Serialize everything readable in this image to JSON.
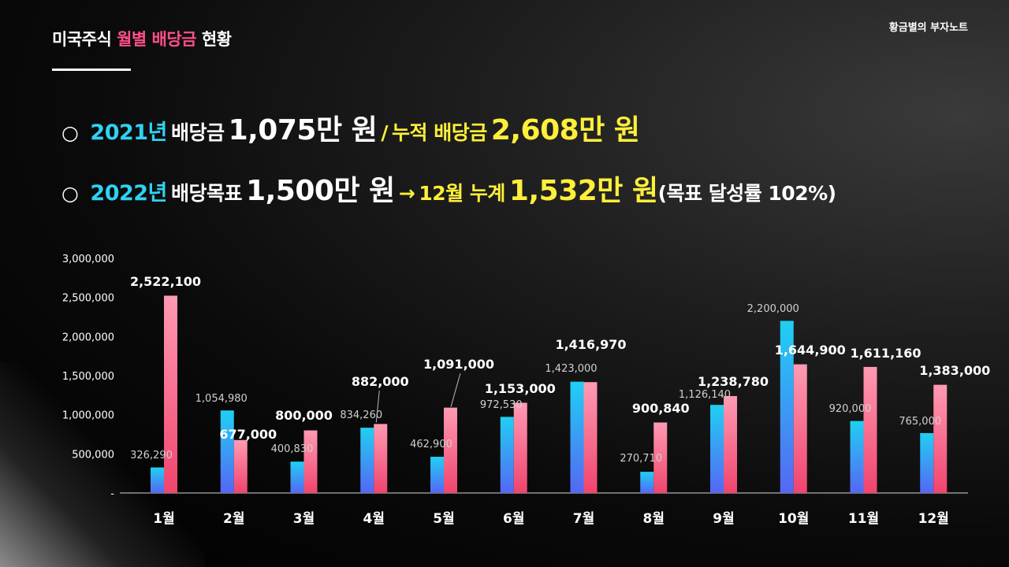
{
  "title": {
    "prefix": "미국주식",
    "accent": "월별 배당금",
    "suffix": "현황"
  },
  "brand": "황금별의 부자노트",
  "summary": {
    "line1": {
      "bullet": "○",
      "year": "2021년",
      "label": "배당금",
      "amount": "1,075만 원",
      "sep": "/",
      "cum_label": "누적 배당금",
      "cum_amount": "2,608만 원"
    },
    "line2": {
      "bullet": "○",
      "year": "2022년",
      "label": "배당목표",
      "amount": "1,500만 원",
      "arrow": "→",
      "dec_label": "12월 누계",
      "dec_amount": "1,532만 원",
      "note": "(목표 달성률 102%)"
    }
  },
  "colors": {
    "accent_pink": "#ff4f8b",
    "cyan": "#2fd2f2",
    "yellow": "#ffef3a"
  },
  "chart_data": {
    "type": "bar",
    "categories": [
      "1월",
      "2월",
      "3월",
      "4월",
      "5월",
      "6월",
      "7월",
      "8월",
      "9월",
      "10월",
      "11월",
      "12월"
    ],
    "series": [
      {
        "name": "2021",
        "color": "#25c4ef",
        "values": [
          326290,
          1054980,
          400830,
          834260,
          462900,
          972530,
          1423000,
          270710,
          1126140,
          2200000,
          920000,
          765000
        ],
        "labels": [
          "326,290",
          "1,054,980",
          "400,830",
          "834,260",
          "462,900",
          "972,530",
          "1,423,000",
          "270,710",
          "1,126,140",
          "2,200,000",
          "920,000",
          "765,000"
        ]
      },
      {
        "name": "2022",
        "color": "#ff6f96",
        "values": [
          2522100,
          677000,
          800000,
          882000,
          1091000,
          1153000,
          1416970,
          900840,
          1238780,
          1644900,
          1611160,
          1383000
        ],
        "labels": [
          "2,522,100",
          "677,000",
          "800,000",
          "882,000",
          "1,091,000",
          "1,153,000",
          "1,416,970",
          "900,840",
          "1,238,780",
          "1,644,900",
          "1,611,160",
          "1,383,000"
        ]
      }
    ],
    "y_ticks": [
      0,
      500000,
      1000000,
      1500000,
      2000000,
      2500000,
      3000000
    ],
    "y_tick_labels": [
      "-",
      "500,000",
      "1,000,000",
      "1,500,000",
      "2,000,000",
      "2,500,000",
      "3,000,000"
    ],
    "ylim": [
      0,
      3000000
    ],
    "grid": false
  }
}
